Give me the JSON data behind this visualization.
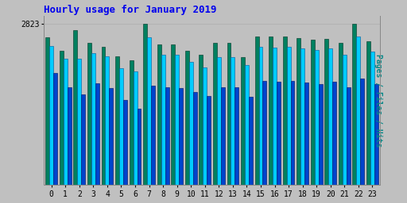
{
  "title": "Hourly usage for January 2019",
  "hours": [
    0,
    1,
    2,
    3,
    4,
    5,
    6,
    7,
    8,
    9,
    10,
    11,
    12,
    13,
    14,
    15,
    16,
    17,
    18,
    19,
    20,
    21,
    22,
    23
  ],
  "files": [
    2580,
    2350,
    2710,
    2490,
    2420,
    2250,
    2180,
    2823,
    2460,
    2460,
    2340,
    2270,
    2480,
    2480,
    2240,
    2600,
    2590,
    2600,
    2570,
    2540,
    2560,
    2490,
    2823,
    2510
  ],
  "pages": [
    2430,
    2200,
    2200,
    2300,
    2250,
    2040,
    1980,
    2580,
    2270,
    2270,
    2150,
    2060,
    2230,
    2230,
    2100,
    2410,
    2400,
    2420,
    2380,
    2360,
    2380,
    2280,
    2600,
    2330
  ],
  "hits": [
    1950,
    1700,
    1580,
    1770,
    1690,
    1480,
    1330,
    1740,
    1710,
    1690,
    1620,
    1550,
    1700,
    1700,
    1540,
    1820,
    1810,
    1820,
    1790,
    1760,
    1810,
    1710,
    1860,
    1760
  ],
  "ytick_label": "2823",
  "ylabel_right": "Pages / Files / Hits",
  "bar_color_files": "#008060",
  "bar_color_pages": "#00ccff",
  "bar_color_hits": "#0044cc",
  "background_color": "#c0c0c0",
  "plot_background": "#c0c0c0",
  "title_color": "#0000ee",
  "ylabel_color": "#008888",
  "bar_width": 0.28,
  "ylim": [
    0,
    2960
  ],
  "figsize": [
    5.12,
    2.56
  ],
  "dpi": 100
}
